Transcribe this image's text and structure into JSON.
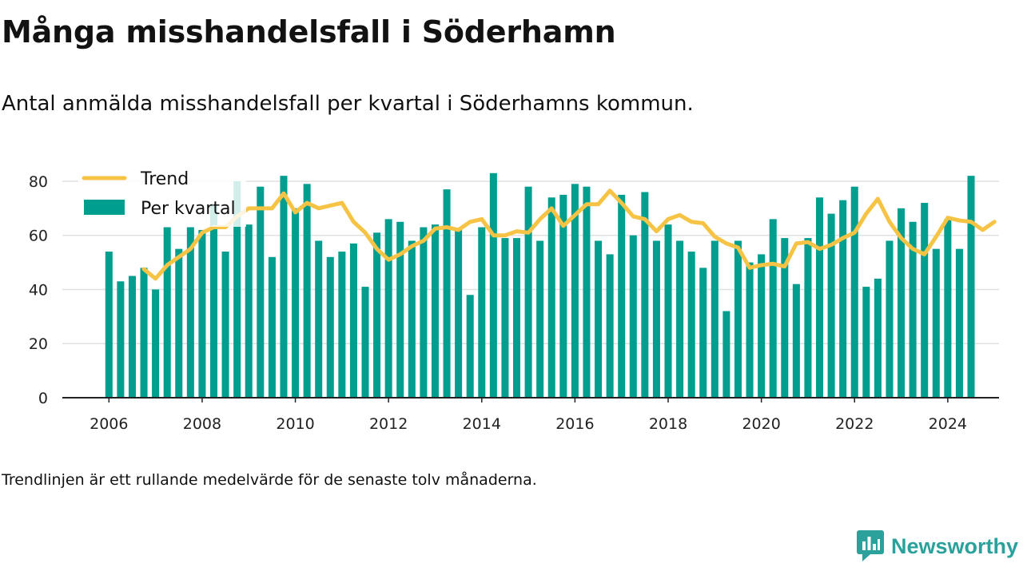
{
  "title": "Många misshandelsfall i Söderhamn",
  "subtitle": "Antal anmälda misshandelsfall per kvartal i Söderhamns kommun.",
  "footnote": "Trendlinjen är ett rullande medelvärde för de senaste tolv månaderna.",
  "brand": {
    "name": "Newsworthy",
    "icon": "newsworthy-logo-icon"
  },
  "colors": {
    "bars": "#009e8f",
    "trend": "#f6c344",
    "grid": "#e0e0e0",
    "axis": "#222222",
    "brand": "#2aa19b"
  },
  "chart_data": {
    "type": "bar",
    "x_start": 2006.0,
    "x_step": 0.25,
    "xticks": [
      2006,
      2008,
      2010,
      2012,
      2014,
      2016,
      2018,
      2020,
      2022,
      2024
    ],
    "yticks": [
      0,
      20,
      40,
      60,
      80
    ],
    "ylim": [
      0,
      85
    ],
    "xlim": [
      2005.0,
      2025.1
    ],
    "grid": true,
    "legend_position": "top-left",
    "series": [
      {
        "name": "Per kvartal",
        "type": "bar",
        "values": [
          54,
          43,
          45,
          48,
          40,
          63,
          55,
          63,
          62,
          71,
          54,
          80,
          64,
          78,
          52,
          82,
          70,
          79,
          58,
          52,
          54,
          57,
          41,
          61,
          66,
          65,
          58,
          63,
          64,
          77,
          62,
          38,
          63,
          83,
          59,
          59,
          78,
          58,
          74,
          75,
          79,
          78,
          58,
          53,
          75,
          60,
          76,
          58,
          64,
          58,
          54,
          48,
          58,
          32,
          58,
          50,
          53,
          66,
          59,
          42,
          59,
          74,
          68,
          73,
          78,
          41,
          44,
          58,
          70,
          65,
          72,
          55,
          66,
          55,
          82
        ]
      },
      {
        "name": "Trend",
        "type": "line",
        "start_index": 3,
        "values": [
          47.5,
          44,
          49,
          52,
          55,
          61,
          63,
          63,
          67,
          70,
          70,
          70,
          75.5,
          68.5,
          72,
          70,
          71,
          72,
          65,
          61,
          55,
          51,
          53,
          56,
          58,
          62.5,
          63,
          62,
          65,
          66,
          60,
          60,
          61.5,
          61,
          66,
          70,
          63.5,
          67.5,
          71.5,
          71.5,
          76.5,
          72,
          67,
          66,
          61.5,
          66,
          67.5,
          65,
          64.5,
          59.5,
          57,
          55.5,
          48,
          49,
          49.5,
          48.5,
          57,
          57.5,
          55,
          56.5,
          59,
          61,
          68,
          73.5,
          65,
          59,
          55,
          53,
          59.5,
          66.5,
          65.5,
          65,
          62,
          65
        ]
      }
    ]
  }
}
